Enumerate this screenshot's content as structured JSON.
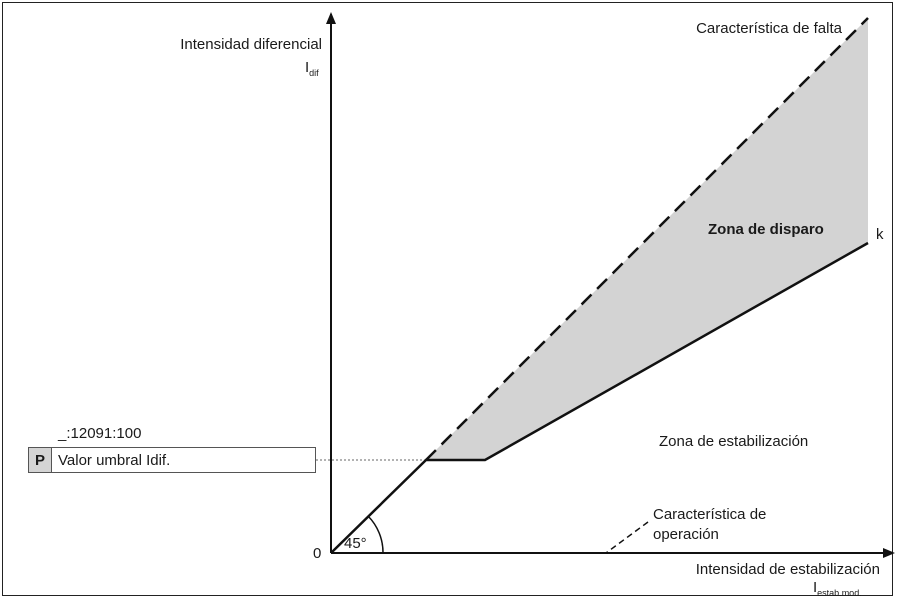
{
  "axes": {
    "y_title": "Intensidad diferencial",
    "y_symbol": "I",
    "y_symbol_sub": "dif",
    "x_title": "Intensidad de estabilización",
    "x_symbol": "I",
    "x_symbol_sub": "estab.mod.",
    "origin_label": "0"
  },
  "annotations": {
    "fault_characteristic": "Característica de falta",
    "trip_zone": "Zona de disparo",
    "slope_label": "k",
    "stabilization_zone": "Zona de estabilización",
    "operation_characteristic_line1": "Característica de",
    "operation_characteristic_line2": "operación",
    "angle_label": "45°"
  },
  "parameter": {
    "code": "_:12091:100",
    "tag": "P",
    "label": "Valor umbral Idif."
  },
  "colors": {
    "trip_zone_fill": "#d3d3d3",
    "line": "#111111"
  }
}
